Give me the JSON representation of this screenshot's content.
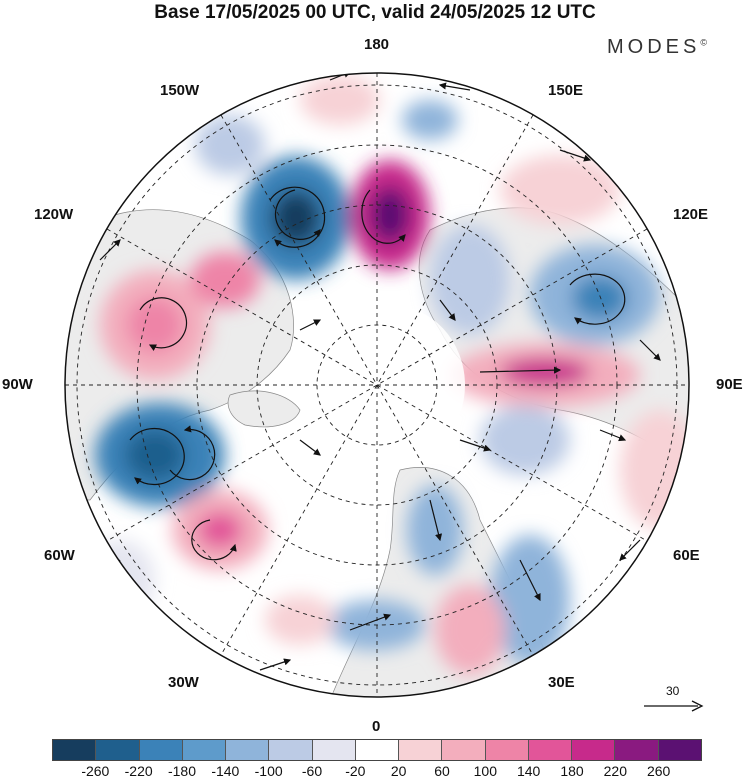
{
  "title": "Base 17/05/2025 00 UTC, valid 24/05/2025 12 UTC",
  "brand": "MODES",
  "brand_mark": "©",
  "longitude_labels": {
    "top": "180",
    "top_left": "150W",
    "top_right": "150E",
    "upper_left": "120W",
    "upper_right": "120E",
    "left": "90W",
    "right": "90E",
    "lower_left": "60W",
    "lower_right": "60E",
    "bottom_left": "30W",
    "bottom_right": "30E",
    "bottom": "0"
  },
  "reference_vector": {
    "value": "30"
  },
  "colorbar": {
    "colors": [
      "#163d5e",
      "#1f5f8d",
      "#3b82b8",
      "#5e9bcb",
      "#8fb4da",
      "#bccbe5",
      "#e4e5f0",
      "#ffffff",
      "#f7d2d6",
      "#f3aebd",
      "#ee84a7",
      "#e25599",
      "#c72a8b",
      "#8a1a80",
      "#5b1172"
    ],
    "tick_labels": [
      "-260",
      "-220",
      "-180",
      "-140",
      "-100",
      "-60",
      "-20",
      "20",
      "60",
      "100",
      "140",
      "180",
      "220",
      "260"
    ]
  },
  "icons": {
    "ref_arrow": "arrow-right-icon",
    "wind_arrow": "arrow-icon"
  }
}
